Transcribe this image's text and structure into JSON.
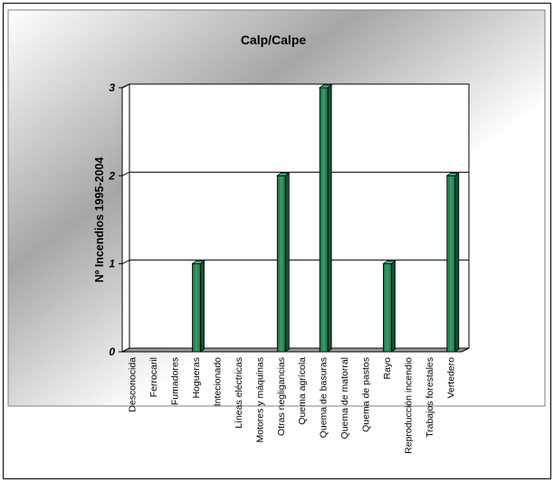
{
  "chart_data": {
    "type": "bar",
    "title": "Calp/Calpe",
    "xlabel": "",
    "ylabel": "Nº Incendios 1995-2004",
    "ylim": [
      0,
      3
    ],
    "yticks": [
      0,
      1,
      2,
      3
    ],
    "grid": true,
    "legend": "none",
    "bar_color": "#2e8b57",
    "categories": [
      "Desconocida",
      "Ferrocaril",
      "Fumadores",
      "Hogueras",
      "Intecionado",
      "Líneas eléctricas",
      "Motores y máquinas",
      "Otras negligancias",
      "Quema agrícola",
      "Quema de basuras",
      "Quema de matorral",
      "Quema de pastos",
      "Rayo",
      "Reproducción incendio",
      "Trabajos forestales",
      "Vertedero"
    ],
    "values": [
      0,
      0,
      0,
      1,
      0,
      0,
      0,
      2,
      0,
      3,
      0,
      0,
      1,
      0,
      0,
      2
    ]
  }
}
